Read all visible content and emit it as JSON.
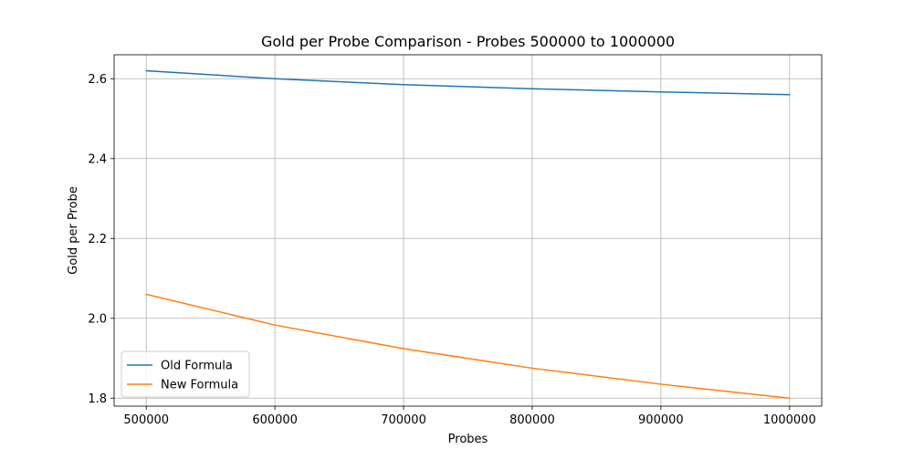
{
  "chart_data": {
    "type": "line",
    "title": "Gold per Probe Comparison - Probes 500000 to 1000000",
    "xlabel": "Probes",
    "ylabel": "Gold per Probe",
    "x": [
      500000,
      600000,
      700000,
      800000,
      900000,
      1000000
    ],
    "x_ticks": [
      "500000",
      "600000",
      "700000",
      "800000",
      "900000",
      "1000000"
    ],
    "y_ticks": [
      "1.8",
      "2.0",
      "2.2",
      "2.4",
      "2.6"
    ],
    "y_tick_values": [
      1.8,
      2.0,
      2.2,
      2.4,
      2.6
    ],
    "xlim": [
      475000,
      1025000
    ],
    "ylim": [
      1.78,
      2.66
    ],
    "grid": true,
    "legend_position": "lower-left",
    "series": [
      {
        "name": "Old Formula",
        "color": "#1f77b4",
        "values": [
          2.62,
          2.6,
          2.585,
          2.575,
          2.567,
          2.56
        ]
      },
      {
        "name": "New Formula",
        "color": "#ff7f0e",
        "values": [
          2.06,
          1.983,
          1.924,
          1.875,
          1.835,
          1.8
        ]
      }
    ]
  }
}
